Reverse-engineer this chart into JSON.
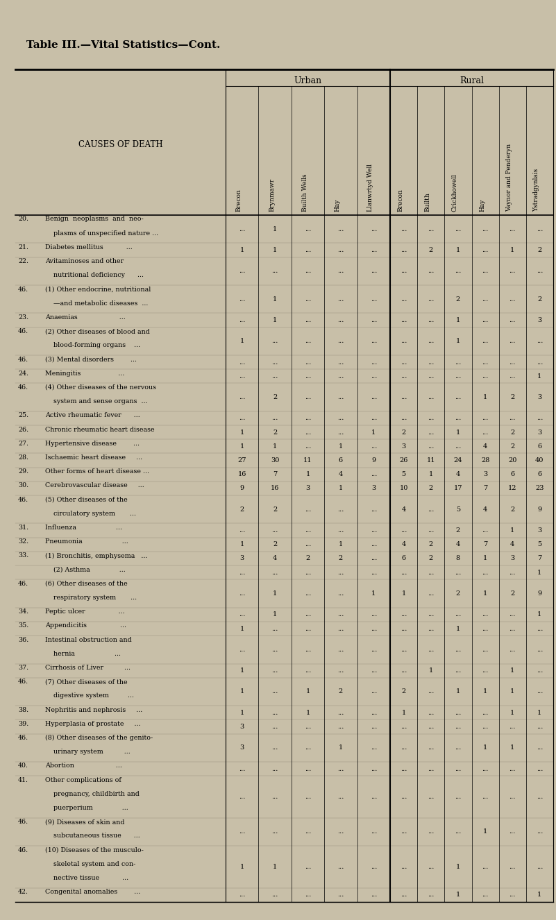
{
  "title": "Table III.—Vital Statistics—Cont.",
  "bg_color": "#c8bfa8",
  "col_headers": [
    "Brecon",
    "Brynmawr",
    "Builth Wells",
    "Hay",
    "Llanwrtyd Well",
    "Brecon",
    "Builth",
    "Crickhowell",
    "Hay",
    "Vaynor and Penderyn",
    "Ystradgynlais"
  ],
  "rows": [
    {
      "num": "20.",
      "lines": [
        "Benign  neoplasms  and  neo-",
        "    plasms of unspecified nature ..."
      ],
      "vals": [
        "...",
        "1",
        "...",
        "...",
        "...",
        "...",
        "...",
        "...",
        "...",
        "...",
        "..."
      ]
    },
    {
      "num": "21.",
      "lines": [
        "Diabetes mellitus           ..."
      ],
      "vals": [
        "1",
        "1",
        "...",
        "...",
        "...",
        "...",
        "2",
        "1",
        "...",
        "1",
        "2"
      ]
    },
    {
      "num": "22.",
      "lines": [
        "Avitaminoses and other",
        "    nutritional deficiency      ..."
      ],
      "vals": [
        "...",
        "...",
        "...",
        "...",
        "...",
        "...",
        "...",
        "...",
        "...",
        "...",
        "..."
      ]
    },
    {
      "num": "46.",
      "lines": [
        "(1) Other endocrine, nutritional",
        "    —and metabolic diseases  ..."
      ],
      "vals": [
        "...",
        "1",
        "...",
        "...",
        "...",
        "...",
        "...",
        "2",
        "...",
        "...",
        "2"
      ]
    },
    {
      "num": "23.",
      "lines": [
        "Anaemias                    ..."
      ],
      "vals": [
        "...",
        "1",
        "...",
        "...",
        "...",
        "...",
        "...",
        "1",
        "...",
        "...",
        "3"
      ]
    },
    {
      "num": "46.",
      "lines": [
        "(2) Other diseases of blood and",
        "    blood-forming organs    ..."
      ],
      "vals": [
        "1",
        "...",
        "...",
        "...",
        "...",
        "...",
        "...",
        "1",
        "...",
        "...",
        "..."
      ]
    },
    {
      "num": "46.",
      "lines": [
        "(3) Mental disorders        ..."
      ],
      "vals": [
        "...",
        "...",
        "...",
        "...",
        "...",
        "...",
        "...",
        "...",
        "...",
        "...",
        "..."
      ]
    },
    {
      "num": "24.",
      "lines": [
        "Meningitis                  ..."
      ],
      "vals": [
        "...",
        "...",
        "...",
        "...",
        "...",
        "...",
        "...",
        "...",
        "...",
        "...",
        "1"
      ]
    },
    {
      "num": "46.",
      "lines": [
        "(4) Other diseases of the nervous",
        "    system and sense organs  ..."
      ],
      "vals": [
        "...",
        "2",
        "...",
        "...",
        "...",
        "...",
        "...",
        "...",
        "1",
        "2",
        "3"
      ]
    },
    {
      "num": "25.",
      "lines": [
        "Active rheumatic fever      ..."
      ],
      "vals": [
        "...",
        "...",
        "...",
        "...",
        "...",
        "...",
        "...",
        "...",
        "...",
        "...",
        "..."
      ]
    },
    {
      "num": "26.",
      "lines": [
        "Chronic rheumatic heart disease"
      ],
      "vals": [
        "1",
        "2",
        "...",
        "...",
        "1",
        "2",
        "...",
        "1",
        "...",
        "2",
        "3"
      ]
    },
    {
      "num": "27.",
      "lines": [
        "Hypertensive disease        ..."
      ],
      "vals": [
        "1",
        "1",
        "...",
        "1",
        "...",
        "3",
        "...",
        "...",
        "4",
        "2",
        "6"
      ]
    },
    {
      "num": "28.",
      "lines": [
        "Ischaemic heart disease     ..."
      ],
      "vals": [
        "27",
        "30",
        "11",
        "6",
        "9",
        "26",
        "11",
        "24",
        "28",
        "20",
        "40"
      ]
    },
    {
      "num": "29.",
      "lines": [
        "Other forms of heart disease ..."
      ],
      "vals": [
        "16",
        "7",
        "1",
        "4",
        "...",
        "5",
        "1",
        "4",
        "3",
        "6",
        "6"
      ]
    },
    {
      "num": "30.",
      "lines": [
        "Cerebrovascular disease     ..."
      ],
      "vals": [
        "9",
        "16",
        "3",
        "1",
        "3",
        "10",
        "2",
        "17",
        "7",
        "12",
        "23"
      ]
    },
    {
      "num": "46.",
      "lines": [
        "(5) Other diseases of the",
        "    circulatory system       ..."
      ],
      "vals": [
        "2",
        "2",
        "...",
        "...",
        "...",
        "4",
        "...",
        "5",
        "4",
        "2",
        "9"
      ]
    },
    {
      "num": "31.",
      "lines": [
        "Influenza                   ..."
      ],
      "vals": [
        "...",
        "...",
        "...",
        "...",
        "...",
        "...",
        "...",
        "2",
        "...",
        "1",
        "3"
      ]
    },
    {
      "num": "32.",
      "lines": [
        "Pneumonia                   ..."
      ],
      "vals": [
        "1",
        "2",
        "...",
        "1",
        "...",
        "4",
        "2",
        "4",
        "7",
        "4",
        "5"
      ]
    },
    {
      "num": "33.",
      "lines": [
        "(1) Bronchitis, emphysema   ..."
      ],
      "vals": [
        "3",
        "4",
        "2",
        "2",
        "...",
        "6",
        "2",
        "8",
        "1",
        "3",
        "7"
      ]
    },
    {
      "num": "",
      "lines": [
        "    (2) Asthma              ..."
      ],
      "vals": [
        "...",
        "...",
        "...",
        "...",
        "...",
        "...",
        "...",
        "...",
        "...",
        "...",
        "1"
      ]
    },
    {
      "num": "46.",
      "lines": [
        "(6) Other diseases of the",
        "    respiratory system       ..."
      ],
      "vals": [
        "...",
        "1",
        "...",
        "...",
        "1",
        "1",
        "...",
        "2",
        "1",
        "2",
        "9"
      ]
    },
    {
      "num": "34.",
      "lines": [
        "Peptic ulcer                ..."
      ],
      "vals": [
        "...",
        "1",
        "...",
        "...",
        "...",
        "...",
        "...",
        "...",
        "...",
        "...",
        "1"
      ]
    },
    {
      "num": "35.",
      "lines": [
        "Appendicitis                ..."
      ],
      "vals": [
        "1",
        "...",
        "...",
        "...",
        "...",
        "...",
        "...",
        "1",
        "...",
        "...",
        "..."
      ]
    },
    {
      "num": "36.",
      "lines": [
        "Intestinal obstruction and",
        "    hernia                   ..."
      ],
      "vals": [
        "...",
        "...",
        "...",
        "...",
        "...",
        "...",
        "...",
        "...",
        "...",
        "...",
        "..."
      ]
    },
    {
      "num": "37.",
      "lines": [
        "Cirrhosis of Liver          ..."
      ],
      "vals": [
        "1",
        "...",
        "...",
        "...",
        "...",
        "...",
        "1",
        "...",
        "...",
        "1",
        "..."
      ]
    },
    {
      "num": "46.",
      "lines": [
        "(7) Other diseases of the",
        "    digestive system         ..."
      ],
      "vals": [
        "1",
        "...",
        "1",
        "2",
        "...",
        "2",
        "...",
        "1",
        "1",
        "1",
        "..."
      ]
    },
    {
      "num": "38.",
      "lines": [
        "Nephritis and nephrosis     ..."
      ],
      "vals": [
        "1",
        "...",
        "1",
        "...",
        "...",
        "1",
        "...",
        "...",
        "...",
        "1",
        "1"
      ]
    },
    {
      "num": "39.",
      "lines": [
        "Hyperplasia of prostate     ..."
      ],
      "vals": [
        "3",
        "...",
        "...",
        "...",
        "...",
        "...",
        "...",
        "...",
        "...",
        "...",
        "..."
      ]
    },
    {
      "num": "46.",
      "lines": [
        "(8) Other diseases of the genito-",
        "    urinary system          ..."
      ],
      "vals": [
        "3",
        "...",
        "...",
        "1",
        "...",
        "...",
        "...",
        "...",
        "1",
        "1",
        "..."
      ]
    },
    {
      "num": "40.",
      "lines": [
        "Abortion                    ..."
      ],
      "vals": [
        "...",
        "...",
        "...",
        "...",
        "...",
        "...",
        "...",
        "...",
        "...",
        "...",
        "..."
      ]
    },
    {
      "num": "41.",
      "lines": [
        "Other complications of",
        "    pregnancy, childbirth and",
        "    puerperium              ..."
      ],
      "vals": [
        "...",
        "...",
        "...",
        "...",
        "...",
        "...",
        "...",
        "...",
        "...",
        "...",
        "..."
      ]
    },
    {
      "num": "46.",
      "lines": [
        "(9) Diseases of skin and",
        "    subcutaneous tissue      ..."
      ],
      "vals": [
        "...",
        "...",
        "...",
        "...",
        "...",
        "...",
        "...",
        "...",
        "1",
        "...",
        "..."
      ]
    },
    {
      "num": "46.",
      "lines": [
        "(10) Diseases of the musculo-",
        "    skeletal system and con-",
        "    nective tissue           ..."
      ],
      "vals": [
        "1",
        "1",
        "...",
        "...",
        "...",
        "...",
        "...",
        "1",
        "...",
        "...",
        "..."
      ]
    },
    {
      "num": "42.",
      "lines": [
        "Congenital anomalies        ..."
      ],
      "vals": [
        "...",
        "...",
        "...",
        "...",
        "...",
        "...",
        "...",
        "1",
        "...",
        "...",
        "1"
      ]
    }
  ]
}
